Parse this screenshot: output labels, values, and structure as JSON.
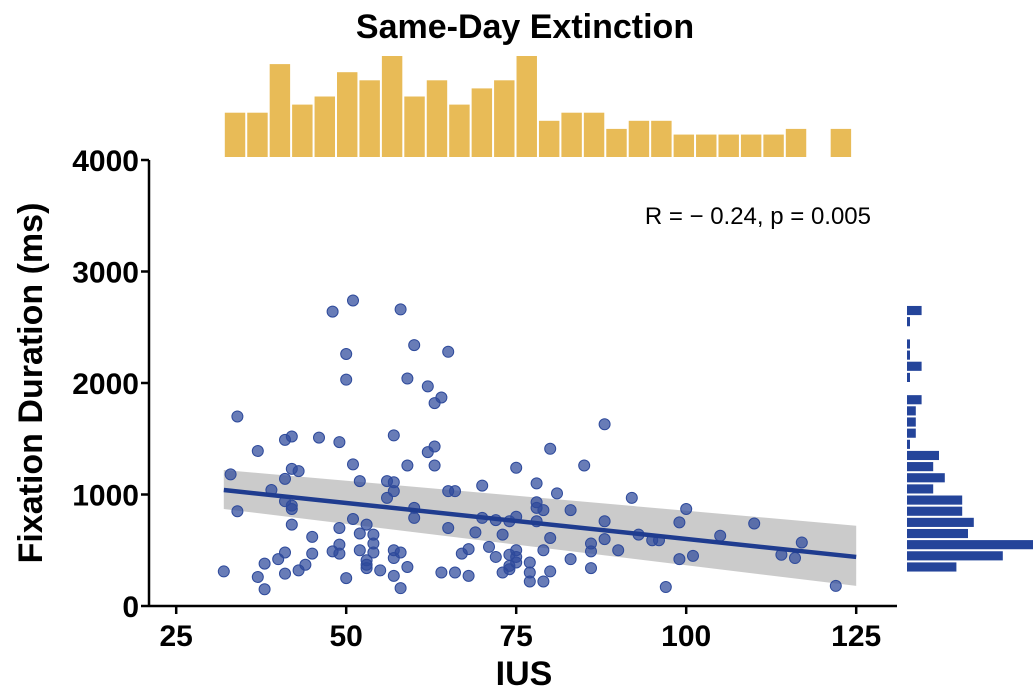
{
  "chart_data": {
    "type": "scatter",
    "title": "Same-Day Extinction",
    "xlabel": "IUS",
    "ylabel": "Fixation Duration (ms)",
    "xlim": [
      21,
      131
    ],
    "ylim": [
      0,
      4000
    ],
    "x_ticks": [
      "25",
      "50",
      "75",
      "100",
      "125"
    ],
    "x_tick_values": [
      25,
      50,
      75,
      100,
      125
    ],
    "y_ticks": [
      "0",
      "1000",
      "2000",
      "3000",
      "4000"
    ],
    "y_tick_values": [
      0,
      1000,
      2000,
      3000,
      4000
    ],
    "annotation": "R = − 0.24, p = 0.005",
    "colors": {
      "points": "#2e4a9b",
      "line": "#1f3c8f",
      "ci_band": "#c8c8c8",
      "x_hist": "#e8bb57",
      "y_hist": "#24449a"
    },
    "regression": {
      "x": [
        32,
        125
      ],
      "y": [
        1040,
        440
      ],
      "ci_lower": [
        870,
        180
      ],
      "ci_upper": [
        1220,
        720
      ]
    },
    "points": [
      {
        "x": 32,
        "y": 310
      },
      {
        "x": 33,
        "y": 1180
      },
      {
        "x": 34,
        "y": 1700
      },
      {
        "x": 34,
        "y": 850
      },
      {
        "x": 37,
        "y": 260
      },
      {
        "x": 37,
        "y": 1390
      },
      {
        "x": 38,
        "y": 150
      },
      {
        "x": 38,
        "y": 380
      },
      {
        "x": 39,
        "y": 1040
      },
      {
        "x": 40,
        "y": 420
      },
      {
        "x": 41,
        "y": 940
      },
      {
        "x": 41,
        "y": 480
      },
      {
        "x": 41,
        "y": 290
      },
      {
        "x": 41,
        "y": 1140
      },
      {
        "x": 41,
        "y": 1490
      },
      {
        "x": 42,
        "y": 1520
      },
      {
        "x": 42,
        "y": 1230
      },
      {
        "x": 42,
        "y": 900
      },
      {
        "x": 42,
        "y": 870
      },
      {
        "x": 42,
        "y": 730
      },
      {
        "x": 43,
        "y": 320
      },
      {
        "x": 43,
        "y": 1210
      },
      {
        "x": 44,
        "y": 370
      },
      {
        "x": 45,
        "y": 470
      },
      {
        "x": 45,
        "y": 620
      },
      {
        "x": 46,
        "y": 1510
      },
      {
        "x": 48,
        "y": 2640
      },
      {
        "x": 48,
        "y": 490
      },
      {
        "x": 49,
        "y": 1470
      },
      {
        "x": 49,
        "y": 700
      },
      {
        "x": 49,
        "y": 550
      },
      {
        "x": 49,
        "y": 470
      },
      {
        "x": 50,
        "y": 2260
      },
      {
        "x": 50,
        "y": 2030
      },
      {
        "x": 50,
        "y": 250
      },
      {
        "x": 51,
        "y": 2740
      },
      {
        "x": 51,
        "y": 1270
      },
      {
        "x": 51,
        "y": 780
      },
      {
        "x": 52,
        "y": 500
      },
      {
        "x": 52,
        "y": 1120
      },
      {
        "x": 52,
        "y": 650
      },
      {
        "x": 53,
        "y": 410
      },
      {
        "x": 53,
        "y": 340
      },
      {
        "x": 53,
        "y": 730
      },
      {
        "x": 53,
        "y": 370
      },
      {
        "x": 54,
        "y": 640
      },
      {
        "x": 54,
        "y": 560
      },
      {
        "x": 54,
        "y": 480
      },
      {
        "x": 55,
        "y": 320
      },
      {
        "x": 56,
        "y": 1120
      },
      {
        "x": 56,
        "y": 970
      },
      {
        "x": 57,
        "y": 1530
      },
      {
        "x": 57,
        "y": 1110
      },
      {
        "x": 57,
        "y": 1030
      },
      {
        "x": 57,
        "y": 500
      },
      {
        "x": 57,
        "y": 430
      },
      {
        "x": 57,
        "y": 270
      },
      {
        "x": 58,
        "y": 2660
      },
      {
        "x": 58,
        "y": 480
      },
      {
        "x": 58,
        "y": 160
      },
      {
        "x": 59,
        "y": 2040
      },
      {
        "x": 59,
        "y": 1260
      },
      {
        "x": 59,
        "y": 350
      },
      {
        "x": 60,
        "y": 2340
      },
      {
        "x": 60,
        "y": 880
      },
      {
        "x": 60,
        "y": 790
      },
      {
        "x": 62,
        "y": 1970
      },
      {
        "x": 62,
        "y": 1380
      },
      {
        "x": 63,
        "y": 1820
      },
      {
        "x": 63,
        "y": 1430
      },
      {
        "x": 63,
        "y": 1260
      },
      {
        "x": 64,
        "y": 1870
      },
      {
        "x": 64,
        "y": 300
      },
      {
        "x": 65,
        "y": 2280
      },
      {
        "x": 65,
        "y": 1030
      },
      {
        "x": 65,
        "y": 700
      },
      {
        "x": 66,
        "y": 1030
      },
      {
        "x": 66,
        "y": 300
      },
      {
        "x": 67,
        "y": 470
      },
      {
        "x": 68,
        "y": 270
      },
      {
        "x": 68,
        "y": 510
      },
      {
        "x": 69,
        "y": 660
      },
      {
        "x": 70,
        "y": 1080
      },
      {
        "x": 70,
        "y": 790
      },
      {
        "x": 71,
        "y": 530
      },
      {
        "x": 72,
        "y": 770
      },
      {
        "x": 72,
        "y": 440
      },
      {
        "x": 73,
        "y": 300
      },
      {
        "x": 73,
        "y": 640
      },
      {
        "x": 74,
        "y": 760
      },
      {
        "x": 74,
        "y": 460
      },
      {
        "x": 74,
        "y": 360
      },
      {
        "x": 74,
        "y": 330
      },
      {
        "x": 75,
        "y": 1240
      },
      {
        "x": 75,
        "y": 800
      },
      {
        "x": 75,
        "y": 500
      },
      {
        "x": 75,
        "y": 440
      },
      {
        "x": 75,
        "y": 390
      },
      {
        "x": 77,
        "y": 390
      },
      {
        "x": 77,
        "y": 300
      },
      {
        "x": 77,
        "y": 220
      },
      {
        "x": 78,
        "y": 1100
      },
      {
        "x": 78,
        "y": 930
      },
      {
        "x": 78,
        "y": 880
      },
      {
        "x": 78,
        "y": 760
      },
      {
        "x": 79,
        "y": 860
      },
      {
        "x": 79,
        "y": 500
      },
      {
        "x": 79,
        "y": 220
      },
      {
        "x": 80,
        "y": 1410
      },
      {
        "x": 80,
        "y": 610
      },
      {
        "x": 80,
        "y": 310
      },
      {
        "x": 81,
        "y": 1010
      },
      {
        "x": 83,
        "y": 860
      },
      {
        "x": 83,
        "y": 420
      },
      {
        "x": 85,
        "y": 1260
      },
      {
        "x": 86,
        "y": 560
      },
      {
        "x": 86,
        "y": 490
      },
      {
        "x": 86,
        "y": 340
      },
      {
        "x": 88,
        "y": 1630
      },
      {
        "x": 88,
        "y": 760
      },
      {
        "x": 88,
        "y": 600
      },
      {
        "x": 90,
        "y": 500
      },
      {
        "x": 92,
        "y": 970
      },
      {
        "x": 93,
        "y": 640
      },
      {
        "x": 95,
        "y": 590
      },
      {
        "x": 96,
        "y": 590
      },
      {
        "x": 97,
        "y": 170
      },
      {
        "x": 99,
        "y": 750
      },
      {
        "x": 99,
        "y": 420
      },
      {
        "x": 100,
        "y": 870
      },
      {
        "x": 101,
        "y": 450
      },
      {
        "x": 105,
        "y": 630
      },
      {
        "x": 110,
        "y": 740
      },
      {
        "x": 114,
        "y": 460
      },
      {
        "x": 116,
        "y": 430
      },
      {
        "x": 117,
        "y": 570
      },
      {
        "x": 122,
        "y": 180
      }
    ],
    "x_hist": {
      "bin_width": 3.3,
      "bin_starts": [
        32,
        35.3,
        38.6,
        41.9,
        45.2,
        48.5,
        51.8,
        55.1,
        58.4,
        61.7,
        65.0,
        68.3,
        71.6,
        74.9,
        78.2,
        81.5,
        84.8,
        88.1,
        91.4,
        94.7,
        98.0,
        101.3,
        104.6,
        107.9,
        111.2,
        114.5,
        121.1
      ],
      "counts": [
        3,
        3,
        9,
        4,
        5,
        8,
        7,
        10,
        5,
        7,
        4,
        6,
        7,
        10,
        2,
        3,
        3,
        1,
        2,
        2,
        0,
        0,
        0,
        0,
        0,
        1,
        1
      ],
      "min_counts": [
        3,
        3,
        9,
        4,
        5,
        8,
        7,
        10,
        5,
        7,
        4,
        6,
        7,
        10,
        2,
        3,
        3,
        1,
        2,
        2,
        0.3,
        0.3,
        0.3,
        0.3,
        0.3,
        1,
        1
      ]
    },
    "y_hist": {
      "bin_width": 100,
      "bin_starts": [
        300,
        400,
        500,
        600,
        700,
        800,
        900,
        1000,
        1100,
        1200,
        1300,
        1400,
        1500,
        1600,
        1700,
        1800,
        2000,
        2100,
        2200,
        2300,
        2500,
        2600
      ],
      "counts": [
        8,
        16,
        22,
        10,
        11,
        9,
        9,
        4,
        6,
        4,
        5,
        0,
        1,
        1,
        1,
        2,
        0,
        2,
        0,
        0,
        0,
        2
      ],
      "min_counts": [
        8,
        16,
        22,
        10,
        11,
        9,
        9,
        4,
        6,
        4,
        5,
        0,
        1,
        1,
        1,
        2,
        0,
        2,
        0,
        0,
        0,
        2
      ]
    }
  }
}
